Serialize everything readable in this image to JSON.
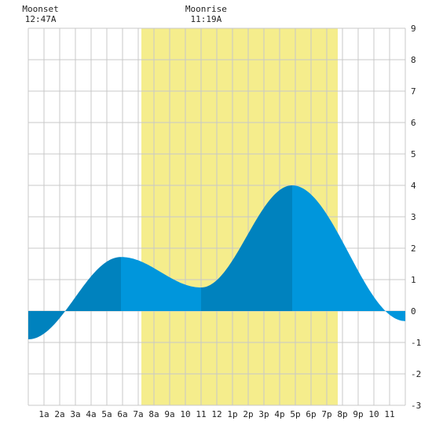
{
  "chart_data": {
    "type": "area",
    "title": "",
    "xlabel": "",
    "ylabel": "",
    "xlim": [
      0,
      24
    ],
    "ylim": [
      -3,
      9
    ],
    "grid": true,
    "x_ticks": [
      {
        "x": 1,
        "label": "1a"
      },
      {
        "x": 2,
        "label": "2a"
      },
      {
        "x": 3,
        "label": "3a"
      },
      {
        "x": 4,
        "label": "4a"
      },
      {
        "x": 5,
        "label": "5a"
      },
      {
        "x": 6,
        "label": "6a"
      },
      {
        "x": 7,
        "label": "7a"
      },
      {
        "x": 8,
        "label": "8a"
      },
      {
        "x": 9,
        "label": "9a"
      },
      {
        "x": 10,
        "label": "10"
      },
      {
        "x": 11,
        "label": "11"
      },
      {
        "x": 12,
        "label": "12"
      },
      {
        "x": 13,
        "label": "1p"
      },
      {
        "x": 14,
        "label": "2p"
      },
      {
        "x": 15,
        "label": "3p"
      },
      {
        "x": 16,
        "label": "4p"
      },
      {
        "x": 17,
        "label": "5p"
      },
      {
        "x": 18,
        "label": "6p"
      },
      {
        "x": 19,
        "label": "7p"
      },
      {
        "x": 20,
        "label": "8p"
      },
      {
        "x": 21,
        "label": "9p"
      },
      {
        "x": 22,
        "label": "10"
      },
      {
        "x": 23,
        "label": "11"
      }
    ],
    "y_ticks": [
      -3,
      -2,
      -1,
      0,
      1,
      2,
      3,
      4,
      5,
      6,
      7,
      8,
      9
    ],
    "daylight": {
      "start": 7.2,
      "end": 19.7
    },
    "extremes": [
      {
        "x": 0,
        "y": -0.9
      },
      {
        "x": 5.9,
        "y": 1.72
      },
      {
        "x": 11.0,
        "y": 0.75
      },
      {
        "x": 16.8,
        "y": 4.0
      },
      {
        "x": 24,
        "y": -0.32
      }
    ],
    "annotations": [
      {
        "title": "Moonset",
        "time": "12:47A",
        "x": 0.78
      },
      {
        "title": "Moonrise",
        "time": "11:19A",
        "x": 11.32
      }
    ],
    "colors": {
      "tide_light": "#0096dc",
      "tide_dark": "#0082be",
      "daylight": "#f5ed8c",
      "grid": "#c8c8c8"
    }
  }
}
